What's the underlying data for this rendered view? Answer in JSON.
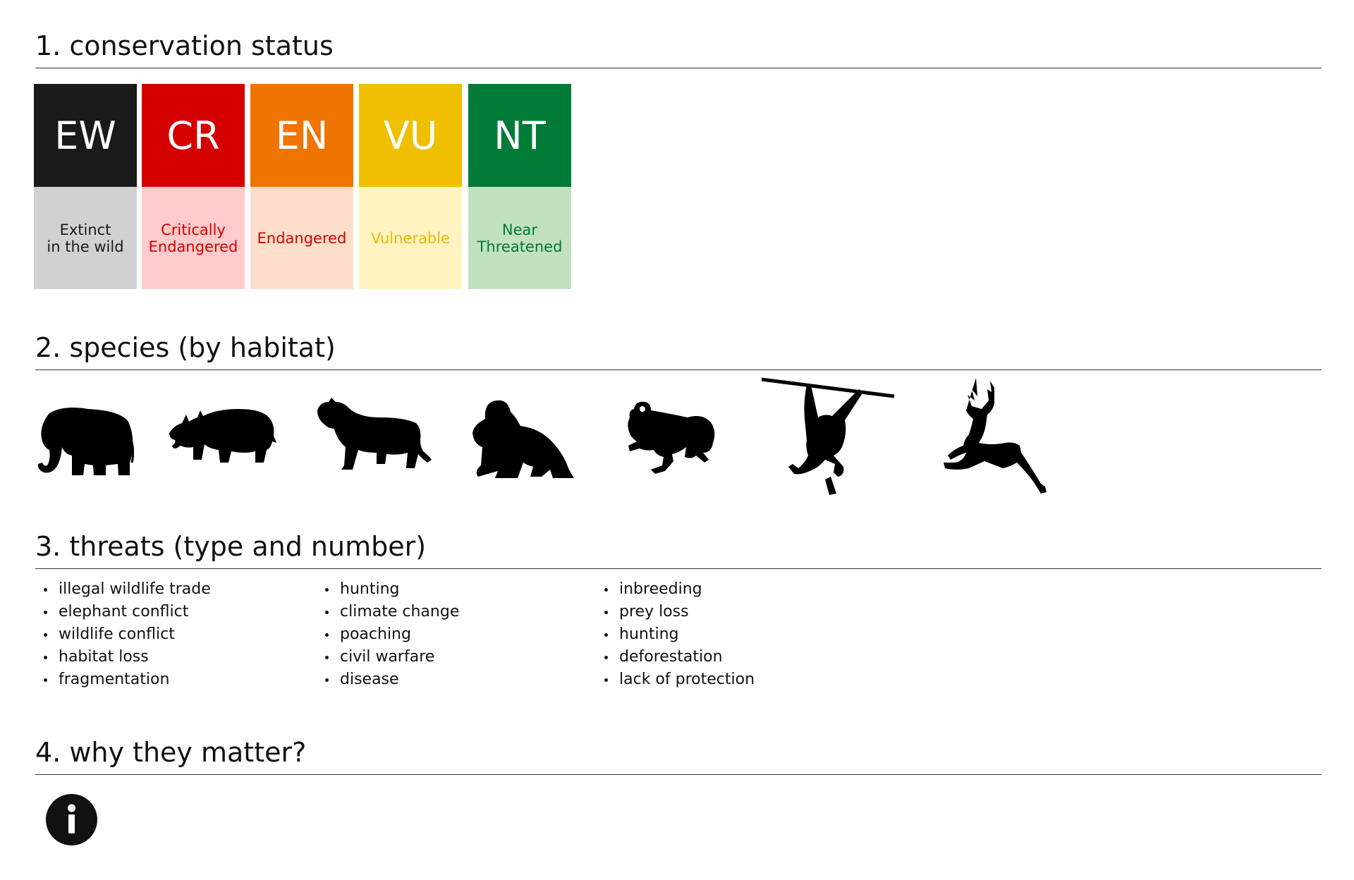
{
  "sections": {
    "status_title": "1. conservation status",
    "species_title": "2. species (by habitat)",
    "threats_title": "3. threats (type and number)",
    "why_title": "4. why they matter?"
  },
  "statuses": [
    {
      "code": "EW",
      "label": "Extinct\nin the wild",
      "color": "#1a1a1a",
      "bg": "#d1d1d1",
      "text_color": "#1a1a1a"
    },
    {
      "code": "CR",
      "label": "Critically\nEndangered",
      "color": "#d40000",
      "bg": "#ffcbcb",
      "text_color": "#d40000"
    },
    {
      "code": "EN",
      "label": "Endangered",
      "color": "#f07400",
      "bg": "#ffdfcb",
      "text_color": "#d40000"
    },
    {
      "code": "VU",
      "label": "Vulnerable",
      "color": "#f0bf00",
      "bg": "#fff4c1",
      "text_color": "#e8b800"
    },
    {
      "code": "NT",
      "label": "Near\nThreatened",
      "color": "#007a37",
      "bg": "#c1e1c1",
      "text_color": "#007a37"
    }
  ],
  "species": [
    {
      "icon": "elephant-icon"
    },
    {
      "icon": "rhino-icon"
    },
    {
      "icon": "tiger-icon"
    },
    {
      "icon": "gorilla-icon"
    },
    {
      "icon": "frog-icon"
    },
    {
      "icon": "gibbon-icon"
    },
    {
      "icon": "deer-icon"
    }
  ],
  "threats": [
    [
      "illegal wildlife trade",
      "elephant conflict",
      "wildlife conflict",
      "habitat loss",
      "fragmentation"
    ],
    [
      "hunting",
      "climate change",
      "poaching",
      "civil warfare",
      "disease"
    ],
    [
      "inbreeding",
      "prey loss",
      "hunting",
      "deforestation",
      "lack of protection"
    ]
  ],
  "info_icon": "info-icon"
}
